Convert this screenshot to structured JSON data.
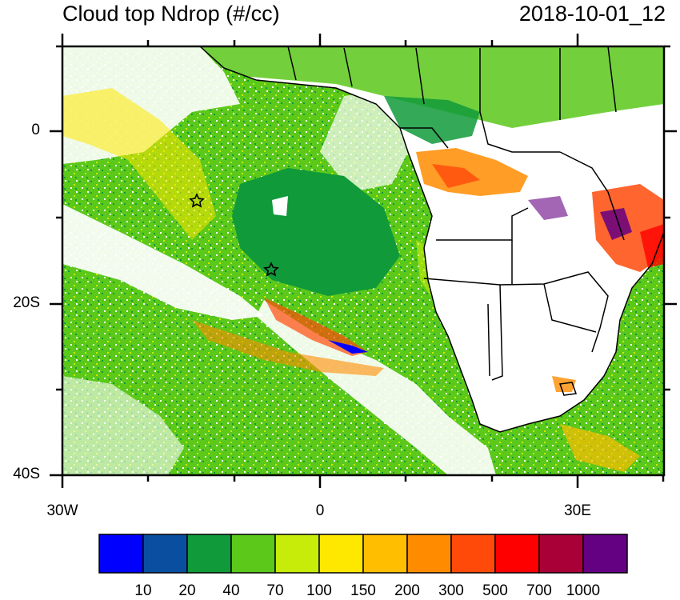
{
  "header": {
    "title": "Cloud top Ndrop (#/cc)",
    "datetime": "2018-10-01_12"
  },
  "map": {
    "lat_labels": [
      "0",
      "20S",
      "40S"
    ],
    "lon_labels": [
      "30W",
      "0",
      "30E"
    ],
    "markers": [
      "star",
      "star"
    ]
  },
  "colorbar": {
    "colors": [
      "#0000ff",
      "#0a4f9f",
      "#109a3a",
      "#5bc81a",
      "#c8ec0a",
      "#ffe800",
      "#ffbe00",
      "#ff8c00",
      "#ff4a0a",
      "#ff0000",
      "#aa0038",
      "#640082"
    ],
    "labels": [
      "10",
      "20",
      "40",
      "70",
      "100",
      "150",
      "200",
      "300",
      "500",
      "700",
      "1000"
    ]
  },
  "colors": {
    "ocean_base": "#5bc81a",
    "land": "#ffffff",
    "border": "#000000"
  }
}
